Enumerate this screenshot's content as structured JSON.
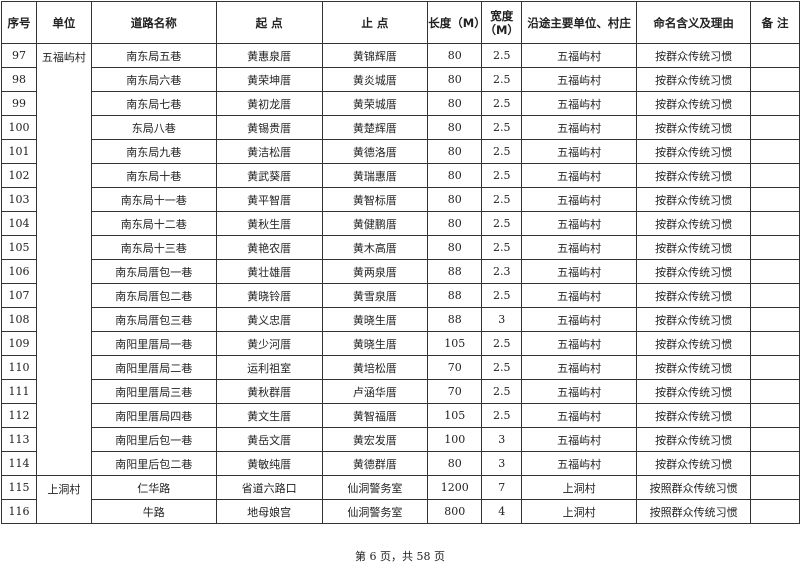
{
  "headers": [
    "序号",
    "单位",
    "道路名称",
    "起 点",
    "止 点",
    "长度（M）",
    "宽度（M）",
    "沿途主要单位、村庄",
    "命名含义及理由",
    "备 注"
  ],
  "groups": [
    {
      "unit": "五福屿村",
      "rows": [
        [
          "97",
          "南东局五巷",
          "黄惠泉厝",
          "黄锦辉厝",
          "80",
          "2.5",
          "五福屿村",
          "按群众传统习惯",
          ""
        ],
        [
          "98",
          "南东局六巷",
          "黄荣坤厝",
          "黄炎城厝",
          "80",
          "2.5",
          "五福屿村",
          "按群众传统习惯",
          ""
        ],
        [
          "99",
          "南东局七巷",
          "黄初龙厝",
          "黄荣城厝",
          "80",
          "2.5",
          "五福屿村",
          "按群众传统习惯",
          ""
        ],
        [
          "100",
          "东局八巷",
          "黄锡贵厝",
          "黄楚辉厝",
          "80",
          "2.5",
          "五福屿村",
          "按群众传统习惯",
          ""
        ],
        [
          "101",
          "南东局九巷",
          "黄洁松厝",
          "黄德洛厝",
          "80",
          "2.5",
          "五福屿村",
          "按群众传统习惯",
          ""
        ],
        [
          "102",
          "南东局十巷",
          "黄武葵厝",
          "黄瑞惠厝",
          "80",
          "2.5",
          "五福屿村",
          "按群众传统习惯",
          ""
        ],
        [
          "103",
          "南东局十一巷",
          "黄平智厝",
          "黄智标厝",
          "80",
          "2.5",
          "五福屿村",
          "按群众传统习惯",
          ""
        ],
        [
          "104",
          "南东局十二巷",
          "黄秋生厝",
          "黄健鹏厝",
          "80",
          "2.5",
          "五福屿村",
          "按群众传统习惯",
          ""
        ],
        [
          "105",
          "南东局十三巷",
          "黄艳农厝",
          "黄木高厝",
          "80",
          "2.5",
          "五福屿村",
          "按群众传统习惯",
          ""
        ],
        [
          "106",
          "南东局厝包一巷",
          "黄壮雄厝",
          "黄两泉厝",
          "88",
          "2.3",
          "五福屿村",
          "按群众传统习惯",
          ""
        ],
        [
          "107",
          "南东局厝包二巷",
          "黄晓铃厝",
          "黄雪泉厝",
          "88",
          "2.5",
          "五福屿村",
          "按群众传统习惯",
          ""
        ],
        [
          "108",
          "南东局厝包三巷",
          "黄义忠厝",
          "黄晓生厝",
          "88",
          "3",
          "五福屿村",
          "按群众传统习惯",
          ""
        ],
        [
          "109",
          "南阳里厝局一巷",
          "黄少河厝",
          "黄晓生厝",
          "105",
          "2.5",
          "五福屿村",
          "按群众传统习惯",
          ""
        ],
        [
          "110",
          "南阳里厝局二巷",
          "运利祖室",
          "黄培松厝",
          "70",
          "2.5",
          "五福屿村",
          "按群众传统习惯",
          ""
        ],
        [
          "111",
          "南阳里厝局三巷",
          "黄秋群厝",
          "卢涵华厝",
          "70",
          "2.5",
          "五福屿村",
          "按群众传统习惯",
          ""
        ],
        [
          "112",
          "南阳里厝局四巷",
          "黄文生厝",
          "黄智福厝",
          "105",
          "2.5",
          "五福屿村",
          "按群众传统习惯",
          ""
        ],
        [
          "113",
          "南阳里后包一巷",
          "黄岳文厝",
          "黄宏发厝",
          "100",
          "3",
          "五福屿村",
          "按群众传统习惯",
          ""
        ],
        [
          "114",
          "南阳里后包二巷",
          "黄敏纯厝",
          "黄德群厝",
          "80",
          "3",
          "五福屿村",
          "按群众传统习惯",
          ""
        ]
      ]
    },
    {
      "unit": "上洞村",
      "rows": [
        [
          "115",
          "仁华路",
          "省道六路口",
          "仙洞警务室",
          "1200",
          "7",
          "上洞村",
          "按照群众传统习惯",
          ""
        ],
        [
          "116",
          "牛路",
          "地母娘宫",
          "仙洞警务室",
          "800",
          "4",
          "上洞村",
          "按照群众传统习惯",
          ""
        ]
      ]
    }
  ],
  "footer": "第 6 页，共 58 页"
}
